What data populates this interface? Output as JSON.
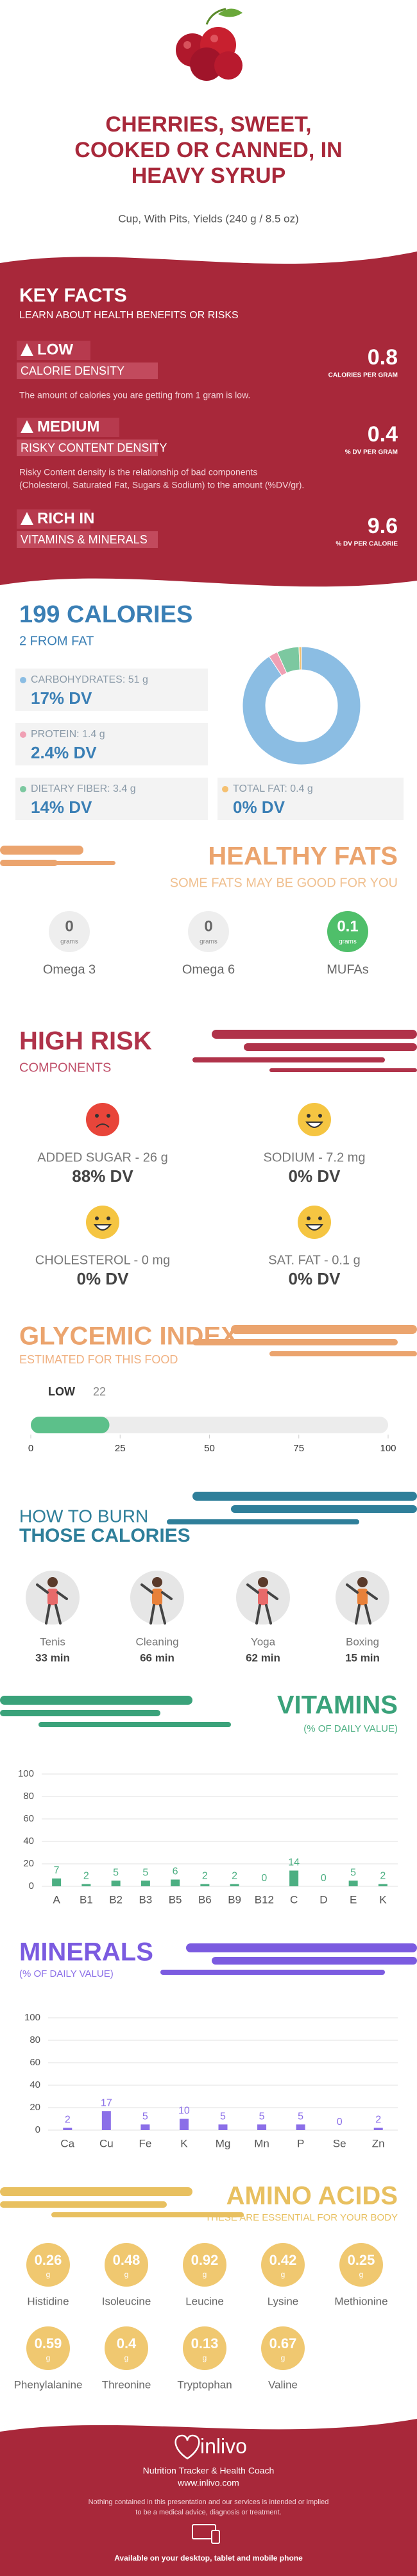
{
  "header": {
    "title_lines": [
      "CHERRIES, SWEET,",
      "COOKED OR CANNED, IN",
      "HEAVY SYRUP"
    ],
    "subtitle": "Cup, With Pits, Yields (240 g / 8.5 oz)"
  },
  "key_facts": {
    "title": "KEY FACTS",
    "subtitle": "LEARN ABOUT HEALTH BENEFITS OR RISKS",
    "items": [
      {
        "level": "LOW",
        "name": "CALORIE DENSITY",
        "value": 0.8,
        "unit": "CALORIES PER GRAM",
        "description": [
          "The amount of calories you are getting from 1 gram is low."
        ]
      },
      {
        "level": "MEDIUM",
        "name": "RISKY CONTENT DENSITY",
        "value": 0.4,
        "unit": "% DV PER GRAM",
        "description": [
          "Risky Content density is the relationship of bad components",
          "(Cholesterol, Saturated Fat, Sugars & Sodium) to the amount (%DV/gr)."
        ]
      },
      {
        "level": "RICH IN",
        "name": "VITAMINS & MINERALS",
        "value": 9.6,
        "unit": "% DV PER CALORIE",
        "description": []
      }
    ]
  },
  "calories": {
    "title": "199 CALORIES",
    "subtitle": "2 FROM FAT",
    "nutrients": [
      {
        "label": "CARBOHYDRATES: 51 g",
        "grams": 51,
        "dv": "17% DV",
        "color": "#8bbde3"
      },
      {
        "label": "PROTEIN: 1.4 g",
        "grams": 1.4,
        "dv": "2.4% DV",
        "color": "#f0a0b4"
      },
      {
        "label": "DIETARY FIBER: 3.4 g",
        "grams": 3.4,
        "dv": "14% DV",
        "color": "#7cc8a0"
      },
      {
        "label": "TOTAL FAT: 0.4 g",
        "grams": 0.4,
        "dv": "0% DV",
        "color": "#f5c070"
      }
    ]
  },
  "healthy_fats": {
    "title": "HEALTHY FATS",
    "subtitle": "SOME FATS MAY BE GOOD FOR YOU",
    "unit": "grams",
    "items": [
      {
        "name": "Omega 3",
        "value": 0
      },
      {
        "name": "Omega 6",
        "value": 0
      },
      {
        "name": "MUFAs",
        "value": 0.1
      }
    ]
  },
  "high_risk": {
    "title": "HIGH RISK",
    "subtitle": "COMPONENTS",
    "items": [
      {
        "label": "ADDED SUGAR - 26 g",
        "dv": "88% DV"
      },
      {
        "label": "SODIUM - 7.2 mg",
        "dv": "0% DV"
      },
      {
        "label": "CHOLESTEROL - 0 mg",
        "dv": "0% DV"
      },
      {
        "label": "SAT. FAT - 0.1 g",
        "dv": "0% DV"
      }
    ]
  },
  "glycemic_index": {
    "title": "GLYCEMIC INDEX",
    "subtitle": "ESTIMATED FOR THIS FOOD",
    "level": "LOW",
    "value": 22,
    "xlim": [
      0,
      100
    ],
    "xticks": [
      0,
      25,
      50,
      75,
      100
    ]
  },
  "burn": {
    "title_lines": [
      "HOW TO BURN",
      "THOSE CALORIES"
    ],
    "activities": [
      {
        "name": "Tenis",
        "time": "33 min"
      },
      {
        "name": "Cleaning",
        "time": "66 min"
      },
      {
        "name": "Yoga",
        "time": "62 min"
      },
      {
        "name": "Boxing",
        "time": "15 min"
      }
    ]
  },
  "vitamins": {
    "title": "VITAMINS",
    "subtitle": "(% OF DAILY VALUE)",
    "color": "#4caf82",
    "categories": [
      "A",
      "B1",
      "B2",
      "B3",
      "B5",
      "B6",
      "B9",
      "B12",
      "C",
      "D",
      "E",
      "K"
    ],
    "values": [
      7,
      2,
      5,
      5,
      6,
      2,
      2,
      0,
      14,
      0,
      5,
      2
    ],
    "ylim": [
      0,
      100
    ],
    "yticks": [
      0,
      20,
      40,
      60,
      80,
      100
    ]
  },
  "minerals": {
    "title": "MINERALS",
    "subtitle": "(% OF DAILY VALUE)",
    "color": "#8b6fe8",
    "categories": [
      "Ca",
      "Cu",
      "Fe",
      "K",
      "Mg",
      "Mn",
      "P",
      "Se",
      "Zn"
    ],
    "values": [
      2,
      17,
      5,
      10,
      5,
      5,
      5,
      0,
      2
    ],
    "ylim": [
      0,
      100
    ],
    "yticks": [
      0,
      20,
      40,
      60,
      80,
      100
    ]
  },
  "amino_acids": {
    "title": "AMINO ACIDS",
    "subtitle": "THESE ARE ESSENTIAL FOR YOUR BODY",
    "unit": "g",
    "items": [
      {
        "name": "Histidine",
        "value": 0.26
      },
      {
        "name": "Isoleucine",
        "value": 0.48
      },
      {
        "name": "Leucine",
        "value": 0.92
      },
      {
        "name": "Lysine",
        "value": 0.42
      },
      {
        "name": "Methionine",
        "value": 0.25
      },
      {
        "name": "Phenylalanine",
        "value": 0.59
      },
      {
        "name": "Threonine",
        "value": 0.4
      },
      {
        "name": "Tryptophan",
        "value": 0.13
      },
      {
        "name": "Valine",
        "value": 0.67
      }
    ]
  },
  "footer": {
    "brand": "inlivo",
    "tagline": "Nutrition Tracker & Health Coach",
    "website": "www.inlivo.com",
    "disclaimer": [
      "Nothing contained in this presentation and our services is intended or implied",
      "to be a medical advice, diagnosis or treatment."
    ],
    "availability": "Available on your desktop, tablet and mobile phone"
  }
}
